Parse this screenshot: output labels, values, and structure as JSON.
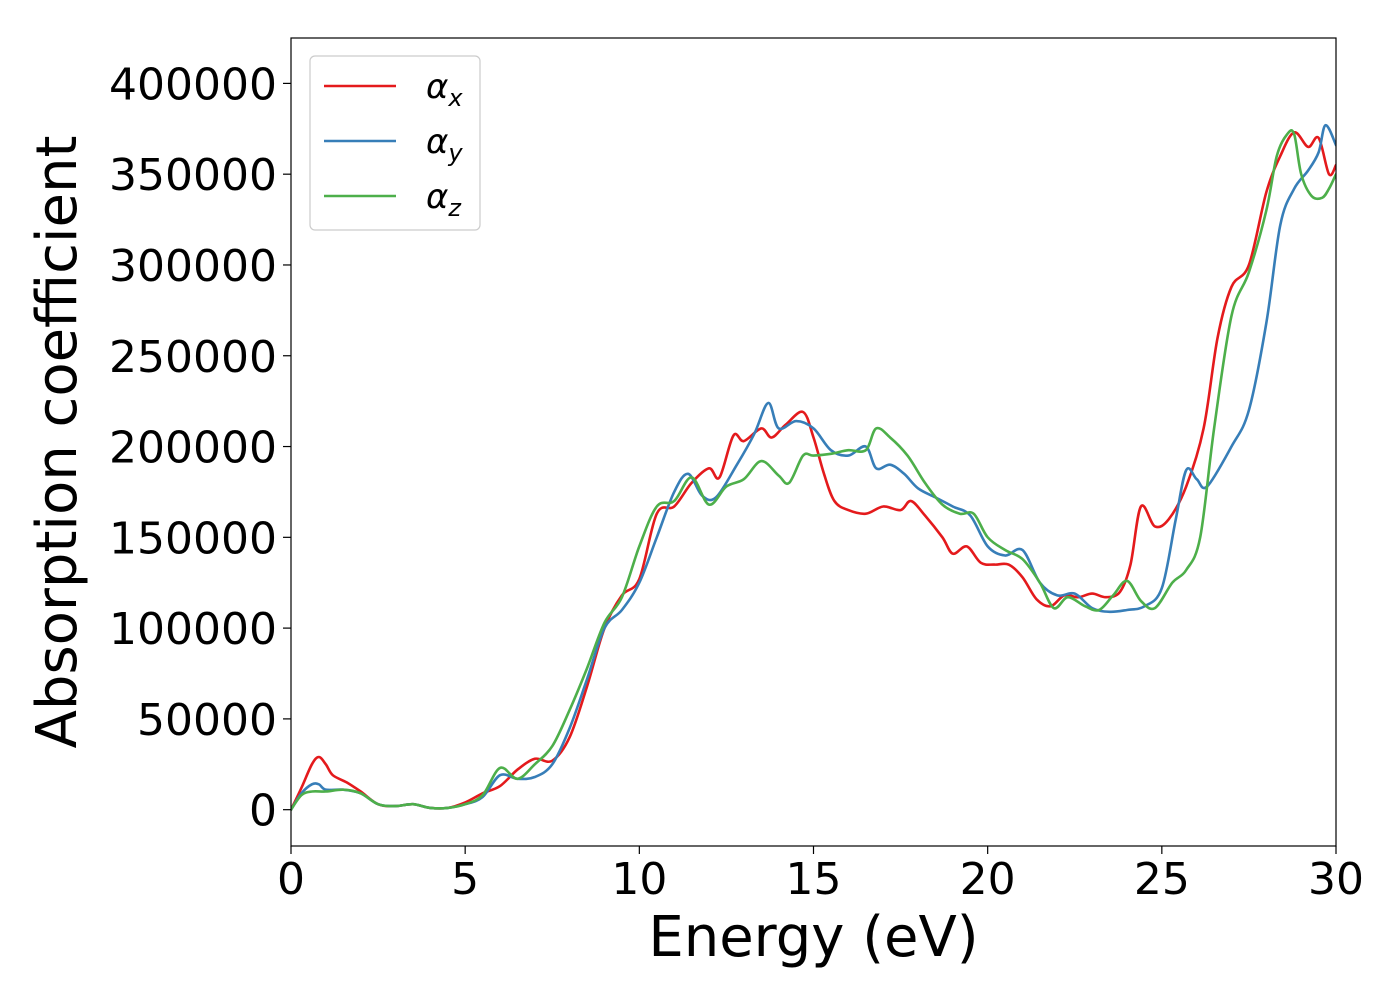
{
  "chart_data": {
    "type": "line",
    "title": "",
    "xlabel": "Energy (eV)",
    "ylabel": "Absorption coefficient",
    "xlim": [
      0,
      30
    ],
    "ylim": [
      -20000,
      425000
    ],
    "xticks": [
      0,
      5,
      10,
      15,
      20,
      25,
      30
    ],
    "xtick_labels": [
      "0",
      "5",
      "10",
      "15",
      "20",
      "25",
      "30"
    ],
    "yticks": [
      0,
      50000,
      100000,
      150000,
      200000,
      250000,
      300000,
      350000,
      400000
    ],
    "ytick_labels": [
      "0",
      "50000",
      "100000",
      "150000",
      "200000",
      "250000",
      "300000",
      "350000",
      "400000"
    ],
    "grid": false,
    "legend_position": "top-left",
    "series": [
      {
        "name": "α_x",
        "legend_base": "α",
        "legend_sub": "x",
        "color": "#e41a1c",
        "points": [
          [
            0,
            0
          ],
          [
            0.3,
            12000
          ],
          [
            0.6,
            25000
          ],
          [
            0.8,
            29000
          ],
          [
            1.0,
            25000
          ],
          [
            1.2,
            19000
          ],
          [
            1.6,
            15000
          ],
          [
            2.0,
            10000
          ],
          [
            2.5,
            3000
          ],
          [
            3.0,
            2000
          ],
          [
            3.5,
            3000
          ],
          [
            4.0,
            1000
          ],
          [
            4.5,
            1000
          ],
          [
            5.0,
            4000
          ],
          [
            5.5,
            9000
          ],
          [
            6.0,
            13000
          ],
          [
            6.5,
            22000
          ],
          [
            7.0,
            28000
          ],
          [
            7.5,
            27000
          ],
          [
            8.0,
            40000
          ],
          [
            8.5,
            68000
          ],
          [
            9.0,
            100000
          ],
          [
            9.5,
            118000
          ],
          [
            10.0,
            127000
          ],
          [
            10.5,
            163000
          ],
          [
            11.0,
            167000
          ],
          [
            11.5,
            180000
          ],
          [
            12.0,
            188000
          ],
          [
            12.3,
            183000
          ],
          [
            12.7,
            206000
          ],
          [
            13.0,
            203000
          ],
          [
            13.5,
            210000
          ],
          [
            13.8,
            205000
          ],
          [
            14.2,
            212000
          ],
          [
            14.7,
            219000
          ],
          [
            15.0,
            205000
          ],
          [
            15.3,
            185000
          ],
          [
            15.6,
            170000
          ],
          [
            16.0,
            165000
          ],
          [
            16.5,
            163000
          ],
          [
            17.0,
            167000
          ],
          [
            17.5,
            165000
          ],
          [
            17.8,
            170000
          ],
          [
            18.2,
            162000
          ],
          [
            18.7,
            150000
          ],
          [
            19.0,
            141000
          ],
          [
            19.4,
            145000
          ],
          [
            19.8,
            136000
          ],
          [
            20.2,
            135000
          ],
          [
            20.6,
            135000
          ],
          [
            21.0,
            128000
          ],
          [
            21.4,
            116000
          ],
          [
            21.8,
            112000
          ],
          [
            22.2,
            118000
          ],
          [
            22.6,
            117000
          ],
          [
            23.0,
            119000
          ],
          [
            23.4,
            117000
          ],
          [
            23.8,
            120000
          ],
          [
            24.1,
            135000
          ],
          [
            24.4,
            167000
          ],
          [
            24.8,
            156000
          ],
          [
            25.2,
            160000
          ],
          [
            25.7,
            178000
          ],
          [
            26.2,
            210000
          ],
          [
            26.6,
            260000
          ],
          [
            27.0,
            288000
          ],
          [
            27.5,
            300000
          ],
          [
            28.0,
            340000
          ],
          [
            28.4,
            360000
          ],
          [
            28.8,
            373000
          ],
          [
            29.2,
            365000
          ],
          [
            29.5,
            370000
          ],
          [
            29.8,
            350000
          ],
          [
            30.0,
            355000
          ]
        ]
      },
      {
        "name": "α_y",
        "legend_base": "α",
        "legend_sub": "y",
        "color": "#377eb8",
        "points": [
          [
            0,
            0
          ],
          [
            0.3,
            9000
          ],
          [
            0.6,
            14000
          ],
          [
            0.8,
            14000
          ],
          [
            1.0,
            11000
          ],
          [
            1.5,
            11000
          ],
          [
            2.0,
            9000
          ],
          [
            2.5,
            3000
          ],
          [
            3.0,
            2000
          ],
          [
            3.5,
            3000
          ],
          [
            4.0,
            1000
          ],
          [
            4.5,
            1000
          ],
          [
            5.0,
            3000
          ],
          [
            5.5,
            7000
          ],
          [
            6.0,
            19000
          ],
          [
            6.5,
            17000
          ],
          [
            7.0,
            18000
          ],
          [
            7.5,
            25000
          ],
          [
            8.0,
            45000
          ],
          [
            8.5,
            72000
          ],
          [
            9.0,
            100000
          ],
          [
            9.5,
            110000
          ],
          [
            10.0,
            125000
          ],
          [
            10.5,
            150000
          ],
          [
            11.0,
            175000
          ],
          [
            11.4,
            185000
          ],
          [
            11.8,
            173000
          ],
          [
            12.2,
            172000
          ],
          [
            12.8,
            190000
          ],
          [
            13.3,
            207000
          ],
          [
            13.7,
            224000
          ],
          [
            14.0,
            210000
          ],
          [
            14.5,
            214000
          ],
          [
            15.0,
            210000
          ],
          [
            15.5,
            198000
          ],
          [
            16.0,
            195000
          ],
          [
            16.5,
            200000
          ],
          [
            16.8,
            188000
          ],
          [
            17.2,
            190000
          ],
          [
            17.6,
            185000
          ],
          [
            18.0,
            177000
          ],
          [
            18.5,
            172000
          ],
          [
            19.0,
            167000
          ],
          [
            19.5,
            162000
          ],
          [
            20.0,
            145000
          ],
          [
            20.5,
            140000
          ],
          [
            21.0,
            143000
          ],
          [
            21.5,
            125000
          ],
          [
            22.0,
            118000
          ],
          [
            22.5,
            119000
          ],
          [
            23.0,
            111000
          ],
          [
            23.5,
            109000
          ],
          [
            24.0,
            110000
          ],
          [
            24.5,
            112000
          ],
          [
            25.0,
            122000
          ],
          [
            25.4,
            160000
          ],
          [
            25.7,
            187000
          ],
          [
            26.0,
            182000
          ],
          [
            26.3,
            178000
          ],
          [
            27.0,
            200000
          ],
          [
            27.5,
            220000
          ],
          [
            28.0,
            268000
          ],
          [
            28.4,
            322000
          ],
          [
            28.8,
            342000
          ],
          [
            29.2,
            352000
          ],
          [
            29.5,
            362000
          ],
          [
            29.7,
            377000
          ],
          [
            30.0,
            366000
          ]
        ]
      },
      {
        "name": "α_z",
        "legend_base": "α",
        "legend_sub": "z",
        "color": "#4daf4a",
        "points": [
          [
            0,
            0
          ],
          [
            0.3,
            8000
          ],
          [
            0.6,
            10000
          ],
          [
            1.0,
            10000
          ],
          [
            1.5,
            11000
          ],
          [
            2.0,
            9000
          ],
          [
            2.5,
            3000
          ],
          [
            3.0,
            2000
          ],
          [
            3.5,
            3000
          ],
          [
            4.0,
            1000
          ],
          [
            4.5,
            1000
          ],
          [
            5.0,
            3000
          ],
          [
            5.5,
            8000
          ],
          [
            6.0,
            23000
          ],
          [
            6.5,
            17000
          ],
          [
            7.0,
            25000
          ],
          [
            7.5,
            35000
          ],
          [
            8.0,
            55000
          ],
          [
            8.5,
            78000
          ],
          [
            9.0,
            103000
          ],
          [
            9.5,
            117000
          ],
          [
            10.0,
            145000
          ],
          [
            10.5,
            167000
          ],
          [
            11.0,
            170000
          ],
          [
            11.5,
            183000
          ],
          [
            12.0,
            168000
          ],
          [
            12.5,
            178000
          ],
          [
            13.0,
            182000
          ],
          [
            13.5,
            192000
          ],
          [
            14.0,
            184000
          ],
          [
            14.3,
            180000
          ],
          [
            14.7,
            195000
          ],
          [
            15.0,
            195000
          ],
          [
            15.5,
            196000
          ],
          [
            16.0,
            198000
          ],
          [
            16.5,
            198000
          ],
          [
            16.8,
            210000
          ],
          [
            17.2,
            205000
          ],
          [
            17.7,
            195000
          ],
          [
            18.2,
            180000
          ],
          [
            18.7,
            168000
          ],
          [
            19.2,
            163000
          ],
          [
            19.6,
            163000
          ],
          [
            20.0,
            150000
          ],
          [
            20.5,
            143000
          ],
          [
            21.0,
            138000
          ],
          [
            21.5,
            125000
          ],
          [
            21.9,
            111000
          ],
          [
            22.3,
            117000
          ],
          [
            22.8,
            112000
          ],
          [
            23.2,
            110000
          ],
          [
            23.6,
            118000
          ],
          [
            24.0,
            126000
          ],
          [
            24.4,
            115000
          ],
          [
            24.8,
            111000
          ],
          [
            25.3,
            125000
          ],
          [
            25.7,
            132000
          ],
          [
            26.1,
            150000
          ],
          [
            26.5,
            210000
          ],
          [
            27.0,
            272000
          ],
          [
            27.5,
            296000
          ],
          [
            28.0,
            330000
          ],
          [
            28.3,
            360000
          ],
          [
            28.6,
            372000
          ],
          [
            28.8,
            372000
          ],
          [
            29.0,
            350000
          ],
          [
            29.3,
            338000
          ],
          [
            29.6,
            337000
          ],
          [
            29.8,
            342000
          ],
          [
            30.0,
            350000
          ]
        ]
      }
    ]
  }
}
